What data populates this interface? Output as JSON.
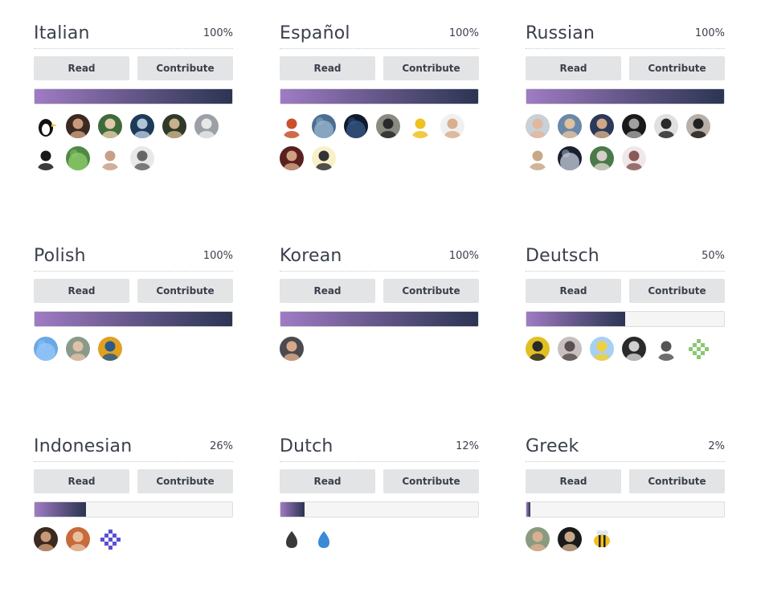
{
  "buttons": {
    "read_label": "Read",
    "contribute_label": "Contribute"
  },
  "languages": [
    {
      "name": "Italian",
      "percent": "100%",
      "progress": 1.0,
      "contributors": [
        {
          "icon": "penguin-avatar-icon",
          "bg": "#ffffff",
          "fg": "#111111"
        },
        {
          "icon": "person-avatar-icon",
          "bg": "#3b2a22",
          "fg": "#c89a7a"
        },
        {
          "icon": "person-avatar-icon",
          "bg": "#3f6b3a",
          "fg": "#e0c8a8"
        },
        {
          "icon": "person-avatar-icon",
          "bg": "#1d3a5a",
          "fg": "#b0c4d8"
        },
        {
          "icon": "person-avatar-icon",
          "bg": "#2f3a2a",
          "fg": "#c8b08a"
        },
        {
          "icon": "person-avatar-icon",
          "bg": "#9aa0a6",
          "fg": "#e8e8e8"
        },
        {
          "icon": "person-avatar-icon",
          "bg": "#ffffff",
          "fg": "#1a1a1a"
        },
        {
          "icon": "pattern-avatar-icon",
          "bg": "#4f8a45",
          "fg": "#8fcf6a"
        },
        {
          "icon": "person-avatar-icon",
          "bg": "#ffffff",
          "fg": "#c8a088"
        },
        {
          "icon": "sketch-avatar-icon",
          "bg": "#e8e8e8",
          "fg": "#666666"
        }
      ]
    },
    {
      "name": "Español",
      "percent": "100%",
      "progress": 1.0,
      "contributors": [
        {
          "icon": "cartoon-avatar-icon",
          "bg": "#ffffff",
          "fg": "#c8502a"
        },
        {
          "icon": "landscape-avatar-icon",
          "bg": "#4a6e90",
          "fg": "#9ab8d0"
        },
        {
          "icon": "night-sky-avatar-icon",
          "bg": "#0e1a2e",
          "fg": "#3a5a8a"
        },
        {
          "icon": "person-avatar-icon",
          "bg": "#8a8a80",
          "fg": "#2a2a2a"
        },
        {
          "icon": "monkey-avatar-icon",
          "bg": "#ffffff",
          "fg": "#f0c020"
        },
        {
          "icon": "person-avatar-icon",
          "bg": "#f0f0f0",
          "fg": "#d8b090"
        },
        {
          "icon": "person-avatar-icon",
          "bg": "#5a2020",
          "fg": "#d0a080"
        },
        {
          "icon": "cartoon-face-avatar-icon",
          "bg": "#f8f0c8",
          "fg": "#333333"
        }
      ]
    },
    {
      "name": "Russian",
      "percent": "100%",
      "progress": 1.0,
      "contributors": [
        {
          "icon": "person-avatar-icon",
          "bg": "#c8d0d8",
          "fg": "#e0b8a0"
        },
        {
          "icon": "person-avatar-icon",
          "bg": "#6a88a8",
          "fg": "#e0c0a0"
        },
        {
          "icon": "person-avatar-icon",
          "bg": "#2a3a5a",
          "fg": "#d0a888"
        },
        {
          "icon": "person-avatar-icon",
          "bg": "#1a1a1a",
          "fg": "#a0a0a0"
        },
        {
          "icon": "person-avatar-icon",
          "bg": "#e0e0e0",
          "fg": "#2a2a2a"
        },
        {
          "icon": "person-avatar-icon",
          "bg": "#b8b0a8",
          "fg": "#202020"
        },
        {
          "icon": "gopher-avatar-icon",
          "bg": "#ffffff",
          "fg": "#c8a888"
        },
        {
          "icon": "globe-avatar-icon",
          "bg": "#1a2030",
          "fg": "#c8d0e0"
        },
        {
          "icon": "person-avatar-icon",
          "bg": "#4a7a4a",
          "fg": "#d8d0c8"
        },
        {
          "icon": "sketch-avatar-icon",
          "bg": "#f0e8e8",
          "fg": "#8a5a5a"
        }
      ]
    },
    {
      "name": "Polish",
      "percent": "100%",
      "progress": 1.0,
      "contributors": [
        {
          "icon": "pattern-avatar-icon",
          "bg": "#6aa8e8",
          "fg": "#9ac8f8"
        },
        {
          "icon": "person-avatar-icon",
          "bg": "#8a9a88",
          "fg": "#e0c0a8"
        },
        {
          "icon": "person-avatar-icon",
          "bg": "#e0a020",
          "fg": "#2a5a8a"
        }
      ]
    },
    {
      "name": "Korean",
      "percent": "100%",
      "progress": 1.0,
      "contributors": [
        {
          "icon": "meditation-avatar-icon",
          "bg": "#4a4a50",
          "fg": "#d8a888"
        }
      ]
    },
    {
      "name": "Deutsch",
      "percent": "50%",
      "progress": 0.5,
      "contributors": [
        {
          "icon": "person-avatar-icon",
          "bg": "#e0c020",
          "fg": "#2a2a2a"
        },
        {
          "icon": "person-avatar-icon",
          "bg": "#c8c0c0",
          "fg": "#5a5050"
        },
        {
          "icon": "cartoon-avatar-icon",
          "bg": "#a8d0f0",
          "fg": "#f0d040"
        },
        {
          "icon": "sketch-avatar-icon",
          "bg": "#2a2a2a",
          "fg": "#d0d0d0"
        },
        {
          "icon": "sketch-avatar-icon",
          "bg": "#ffffff",
          "fg": "#555555"
        },
        {
          "icon": "identicon-avatar-icon",
          "bg": "#ffffff",
          "fg": "#8ac870"
        }
      ]
    },
    {
      "name": "Indonesian",
      "percent": "26%",
      "progress": 0.26,
      "contributors": [
        {
          "icon": "person-avatar-icon",
          "bg": "#3a2a20",
          "fg": "#c89878"
        },
        {
          "icon": "person-avatar-icon",
          "bg": "#c86a3a",
          "fg": "#e8c0a0"
        },
        {
          "icon": "identicon-avatar-icon",
          "bg": "#ffffff",
          "fg": "#5a50d0"
        }
      ]
    },
    {
      "name": "Dutch",
      "percent": "12%",
      "progress": 0.12,
      "contributors": [
        {
          "icon": "droplet-avatar-icon",
          "bg": "#ffffff",
          "fg": "#3a3a3a"
        },
        {
          "icon": "droplet-avatar-icon",
          "bg": "#ffffff",
          "fg": "#3a8ad8"
        }
      ]
    },
    {
      "name": "Greek",
      "percent": "2%",
      "progress": 0.02,
      "contributors": [
        {
          "icon": "person-avatar-icon",
          "bg": "#8a9a80",
          "fg": "#d8b090"
        },
        {
          "icon": "person-avatar-icon",
          "bg": "#1a1a1a",
          "fg": "#c8a888"
        },
        {
          "icon": "bee-avatar-icon",
          "bg": "#ffffff",
          "fg": "#f0c020"
        }
      ]
    }
  ]
}
